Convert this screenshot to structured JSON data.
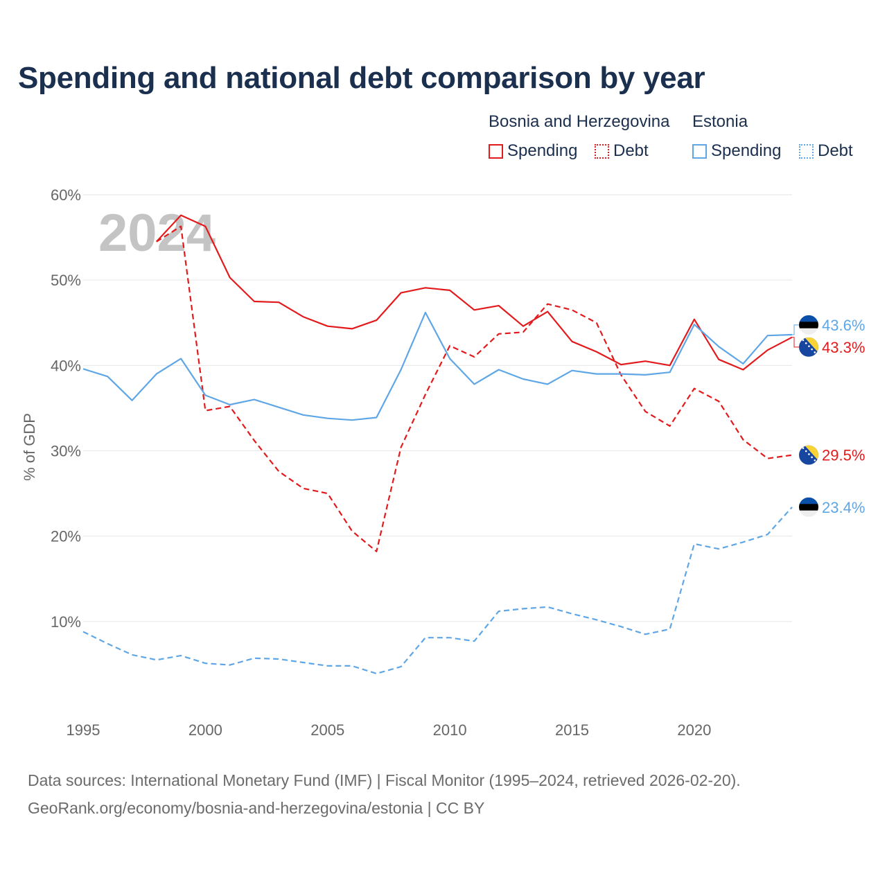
{
  "title": "Spending and national debt comparison by year",
  "legend": {
    "groups": [
      {
        "name": "Bosnia and Herzegovina",
        "color": "#e31a1c",
        "items": [
          {
            "label": "Spending",
            "style": "solid"
          },
          {
            "label": "Debt",
            "style": "dotted"
          }
        ]
      },
      {
        "name": "Estonia",
        "color": "#5ea6e6",
        "items": [
          {
            "label": "Spending",
            "style": "solid"
          },
          {
            "label": "Debt",
            "style": "dotted"
          }
        ]
      }
    ]
  },
  "year_watermark": "2024",
  "sources": {
    "line1": "Data sources: International Monetary Fund (IMF) | Fiscal Monitor (1995–2024, retrieved 2026-02-20).",
    "line2": "GeoRank.org/economy/bosnia-and-herzegovina/estonia | CC BY"
  },
  "chart_data": {
    "type": "line",
    "title": "Spending and national debt comparison by year",
    "xlabel": "",
    "ylabel": "% of GDP",
    "xlim": [
      1995,
      2024
    ],
    "ylim": [
      0,
      60
    ],
    "x_ticks": [
      "1995",
      "2000",
      "2005",
      "2010",
      "2015",
      "2020"
    ],
    "y_ticks": [
      "10%",
      "20%",
      "30%",
      "40%",
      "50%",
      "60%"
    ],
    "grid": true,
    "series": [
      {
        "name": "Bosnia and Herzegovina Spending",
        "country": "Bosnia and Herzegovina",
        "metric": "Spending",
        "color": "#e31a1c",
        "dash": "solid",
        "end_label": "43.3%",
        "flag": "bosnia-flag-icon",
        "x": [
          1998,
          1999,
          2000,
          2001,
          2002,
          2003,
          2004,
          2005,
          2006,
          2007,
          2008,
          2009,
          2010,
          2011,
          2012,
          2013,
          2014,
          2015,
          2016,
          2017,
          2018,
          2019,
          2020,
          2021,
          2022,
          2023,
          2024
        ],
        "values": [
          54.5,
          57.6,
          56.3,
          50.3,
          47.5,
          47.4,
          45.7,
          44.6,
          44.3,
          45.3,
          48.5,
          49.1,
          48.8,
          46.5,
          47.0,
          44.6,
          46.3,
          42.8,
          41.6,
          40.1,
          40.5,
          40.0,
          45.4,
          40.7,
          39.5,
          41.8,
          43.3
        ]
      },
      {
        "name": "Bosnia and Herzegovina Debt",
        "country": "Bosnia and Herzegovina",
        "metric": "Debt",
        "color": "#e31a1c",
        "dash": "dashed",
        "end_label": "29.5%",
        "flag": "bosnia-flag-icon",
        "x": [
          1998,
          1999,
          2000,
          2001,
          2002,
          2003,
          2004,
          2005,
          2006,
          2007,
          2008,
          2009,
          2010,
          2011,
          2012,
          2013,
          2014,
          2015,
          2016,
          2017,
          2018,
          2019,
          2020,
          2021,
          2022,
          2023,
          2024
        ],
        "values": [
          54.5,
          56.3,
          34.7,
          35.2,
          31.2,
          27.6,
          25.6,
          25.0,
          20.6,
          18.2,
          30.4,
          36.6,
          42.3,
          41.0,
          43.7,
          43.9,
          47.2,
          46.5,
          45.0,
          38.9,
          34.6,
          32.9,
          37.3,
          35.8,
          31.3,
          29.1,
          29.5
        ]
      },
      {
        "name": "Estonia Spending",
        "country": "Estonia",
        "metric": "Spending",
        "color": "#5ea6e6",
        "dash": "solid",
        "end_label": "43.6%",
        "flag": "estonia-flag-icon",
        "x": [
          1995,
          1996,
          1997,
          1998,
          1999,
          2000,
          2001,
          2002,
          2003,
          2004,
          2005,
          2006,
          2007,
          2008,
          2009,
          2010,
          2011,
          2012,
          2013,
          2014,
          2015,
          2016,
          2017,
          2018,
          2019,
          2020,
          2021,
          2022,
          2023,
          2024
        ],
        "values": [
          39.6,
          38.7,
          35.9,
          39.0,
          40.8,
          36.5,
          35.4,
          36.0,
          35.1,
          34.2,
          33.8,
          33.6,
          33.9,
          39.5,
          46.2,
          40.8,
          37.8,
          39.5,
          38.4,
          37.8,
          39.4,
          39.0,
          39.0,
          38.9,
          39.2,
          44.8,
          42.2,
          40.2,
          43.5,
          43.6
        ]
      },
      {
        "name": "Estonia Debt",
        "country": "Estonia",
        "metric": "Debt",
        "color": "#5ea6e6",
        "dash": "dashed",
        "end_label": "23.4%",
        "flag": "estonia-flag-icon",
        "x": [
          1995,
          1996,
          1997,
          1998,
          1999,
          2000,
          2001,
          2002,
          2003,
          2004,
          2005,
          2006,
          2007,
          2008,
          2009,
          2010,
          2011,
          2012,
          2013,
          2014,
          2015,
          2016,
          2017,
          2018,
          2019,
          2020,
          2021,
          2022,
          2023,
          2024
        ],
        "values": [
          8.8,
          7.4,
          6.1,
          5.5,
          6.0,
          5.1,
          4.9,
          5.7,
          5.6,
          5.2,
          4.8,
          4.8,
          3.9,
          4.7,
          8.1,
          8.1,
          7.7,
          11.2,
          11.5,
          11.7,
          10.9,
          10.2,
          9.4,
          8.5,
          9.1,
          19.1,
          18.5,
          19.3,
          20.2,
          23.4
        ]
      }
    ]
  }
}
